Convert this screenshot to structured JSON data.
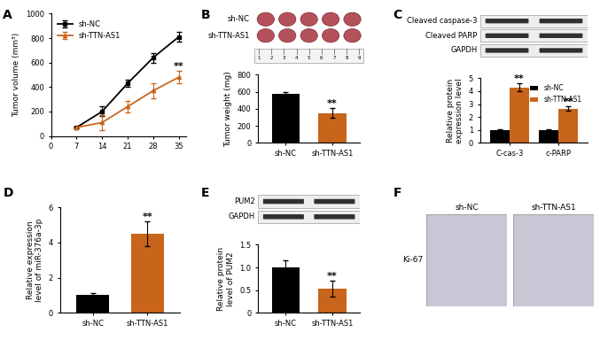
{
  "chart_data": [
    {
      "panel": "A",
      "type": "line",
      "x": [
        7,
        14,
        21,
        28,
        35
      ],
      "xlim": [
        0,
        37
      ],
      "xticks": [
        0,
        7,
        14,
        21,
        28,
        35
      ],
      "ylim": [
        0,
        1000
      ],
      "yticks": [
        0,
        200,
        400,
        600,
        800,
        1000
      ],
      "y_label": "Tumor volume (mm³)",
      "legend": "upper left",
      "series": [
        {
          "name": "sh-NC",
          "color": "#000000",
          "marker": "square",
          "values": [
            70,
            200,
            430,
            640,
            810
          ],
          "errors": [
            10,
            40,
            30,
            40,
            40
          ]
        },
        {
          "name": "sh-TTN-AS1",
          "color": "#c9651b",
          "marker": "triangle",
          "values": [
            70,
            110,
            240,
            370,
            480
          ],
          "errors": [
            10,
            60,
            50,
            60,
            50
          ]
        }
      ],
      "annotations": [
        {
          "text": "**",
          "series": "sh-TTN-AS1",
          "x": 35
        }
      ]
    },
    {
      "panel": "B",
      "type": "bar",
      "categories": [
        "sh-NC",
        "sh-TTN-AS1"
      ],
      "values": [
        580,
        350
      ],
      "errors": [
        20,
        60
      ],
      "colors": [
        "#000000",
        "#c9651b"
      ],
      "ylim": [
        0,
        800
      ],
      "yticks": [
        0,
        200,
        400,
        600,
        800
      ],
      "y_label": "Tumor weight (mg)",
      "annotations": [
        {
          "text": "**",
          "category": "sh-TTN-AS1"
        }
      ],
      "photo": {
        "rows": [
          "sh-NC",
          "sh-TTN-AS1"
        ],
        "ruler": [
          1,
          2,
          3,
          4,
          5,
          6,
          7,
          8,
          9
        ]
      }
    },
    {
      "panel": "C",
      "type": "bar",
      "categories": [
        "C-cas-3",
        "c-PARP"
      ],
      "series": [
        {
          "name": "sh-NC",
          "color": "#000000",
          "values": [
            1.0,
            1.0
          ],
          "errors": [
            0.05,
            0.08
          ]
        },
        {
          "name": "sh-TTN-AS1",
          "color": "#c9651b",
          "values": [
            4.3,
            2.65
          ],
          "errors": [
            0.3,
            0.15
          ]
        }
      ],
      "ylim": [
        0,
        5
      ],
      "yticks": [
        0,
        1,
        2,
        3,
        4,
        5
      ],
      "y_label": "Relative protein\nexpression level",
      "legend": "upper right",
      "annotations": [
        {
          "text": "**",
          "series": "sh-TTN-AS1",
          "category": "C-cas-3"
        },
        {
          "text": "**",
          "series": "sh-TTN-AS1",
          "category": "c-PARP"
        }
      ],
      "blot": {
        "rows": [
          "Cleaved caspase-3",
          "Cleaved PARP",
          "GAPDH"
        ]
      }
    },
    {
      "panel": "D",
      "type": "bar",
      "categories": [
        "sh-NC",
        "sh-TTN-AS1"
      ],
      "values": [
        1.0,
        4.5
      ],
      "errors": [
        0.1,
        0.7
      ],
      "colors": [
        "#000000",
        "#c9651b"
      ],
      "ylim": [
        0,
        6
      ],
      "yticks": [
        0,
        2,
        4,
        6
      ],
      "y_label": "Relative expression\nlevel of miR-376a-3p",
      "annotations": [
        {
          "text": "**",
          "category": "sh-TTN-AS1"
        }
      ]
    },
    {
      "panel": "E",
      "type": "bar",
      "categories": [
        "sh-NC",
        "sh-TTN-AS1"
      ],
      "values": [
        1.0,
        0.53
      ],
      "errors": [
        0.15,
        0.18
      ],
      "colors": [
        "#000000",
        "#c9651b"
      ],
      "ylim": [
        0,
        1.5
      ],
      "yticks": [
        0,
        0.5,
        {
          "value": 1.0,
          "label": "1.0"
        },
        1.5
      ],
      "y_label": "Relative protein\nlevel of PUM2",
      "annotations": [
        {
          "text": "**",
          "category": "sh-TTN-AS1"
        }
      ],
      "blot": {
        "rows": [
          "PUM2",
          "GAPDH"
        ]
      }
    }
  ],
  "images": {
    "panel": "F",
    "stain": "Ki-67",
    "columns": [
      "sh-NC",
      "sh-TTN-AS1"
    ]
  }
}
